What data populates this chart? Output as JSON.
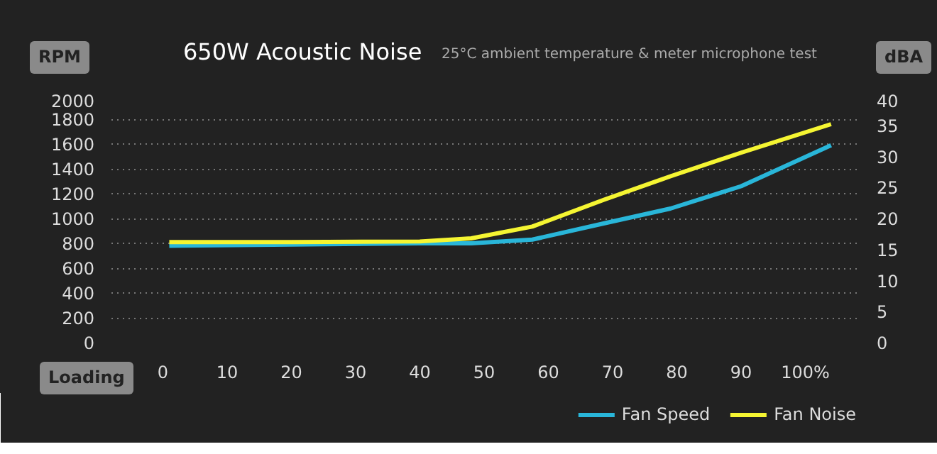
{
  "chart_data": {
    "type": "line",
    "title": "650W Acoustic Noise",
    "subtitle": "25°C ambient temperature & meter microphone test",
    "xlabel": "Loading",
    "ylabel": "RPM",
    "y2label": "dBA",
    "xlim": [
      -8,
      108
    ],
    "xticks": [
      0,
      10,
      20,
      30,
      40,
      50,
      60,
      70,
      80,
      90,
      {
        "value": 100,
        "label": "100%"
      }
    ],
    "ylim": [
      0,
      2000
    ],
    "yticks": [
      0,
      200,
      400,
      600,
      800,
      1000,
      1200,
      1400,
      1600,
      1800,
      2000
    ],
    "y2lim": [
      0,
      40
    ],
    "y2ticks": [
      0,
      5,
      10,
      15,
      20,
      25,
      30,
      35,
      40
    ],
    "grid": "y",
    "legend": "bottom right",
    "series": [
      {
        "name": "Fan Speed",
        "color": "#29b6d9",
        "x": [
          1,
          20,
          40,
          48,
          57.5,
          68.6,
          79,
          90,
          104
        ],
        "values": [
          780,
          790,
          800,
          800,
          830,
          960,
          1080,
          1260,
          1590
        ]
      },
      {
        "name": "Fan Noise",
        "color": "#f5f532",
        "axis": "y2",
        "x": [
          1,
          20,
          40,
          48,
          57.5,
          68.6,
          79,
          90,
          104
        ],
        "values": [
          16.2,
          16.2,
          16.3,
          16.8,
          18.7,
          23.0,
          26.8,
          30.6,
          35.2
        ]
      }
    ]
  }
}
